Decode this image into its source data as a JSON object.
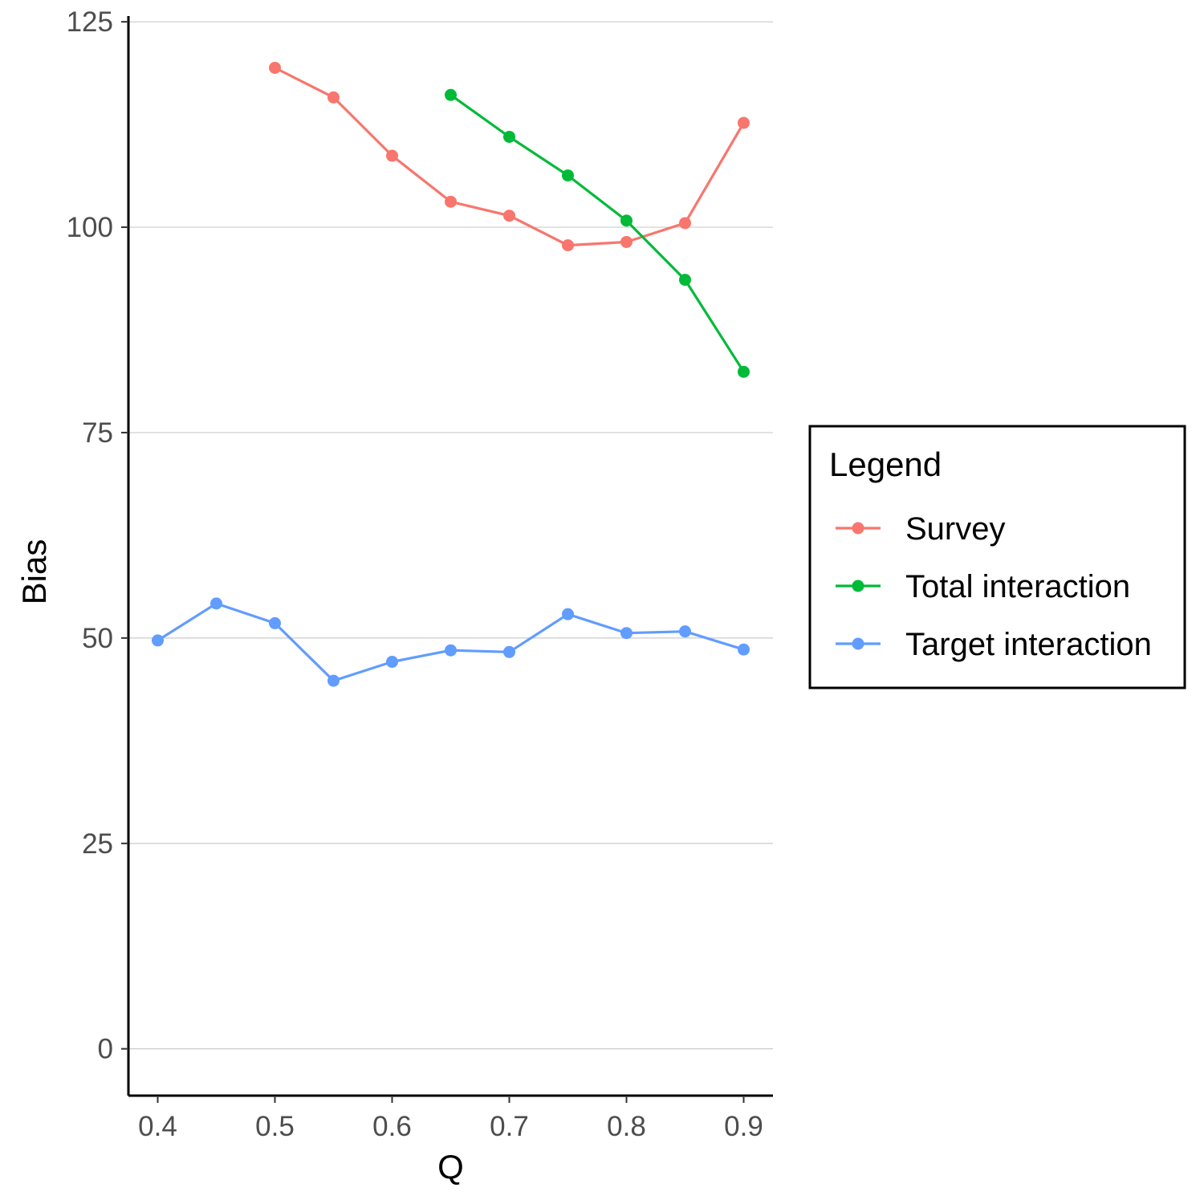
{
  "chart_data": {
    "type": "line",
    "title": "",
    "xlabel": "Q",
    "ylabel": "Bias",
    "xlim": [
      0.375,
      0.925
    ],
    "ylim": [
      -5.7,
      125.7
    ],
    "xticks": [
      0.4,
      0.5,
      0.6,
      0.7,
      0.8,
      0.9
    ],
    "xtick_labels": [
      "0.4",
      "0.5",
      "0.6",
      "0.7",
      "0.8",
      "0.9"
    ],
    "yticks": [
      0,
      25,
      50,
      75,
      100,
      125
    ],
    "ytick_labels": [
      "0",
      "25",
      "50",
      "75",
      "100",
      "125"
    ],
    "grid": "horizontal major gridlines",
    "legend": {
      "title": "Legend",
      "placement": "right",
      "entries": [
        "Survey",
        "Total interaction",
        "Target interaction"
      ]
    },
    "series": [
      {
        "name": "Survey",
        "color": "#F8766D",
        "x": [
          0.5,
          0.55,
          0.6,
          0.65,
          0.7,
          0.75,
          0.8,
          0.85,
          0.9
        ],
        "y": [
          119.4,
          115.8,
          108.7,
          103.1,
          101.4,
          97.8,
          98.2,
          100.5,
          112.7
        ]
      },
      {
        "name": "Total interaction",
        "color": "#00BA38",
        "x": [
          0.65,
          0.7,
          0.75,
          0.8,
          0.85,
          0.9
        ],
        "y": [
          116.1,
          111.0,
          106.3,
          100.8,
          93.6,
          82.4
        ]
      },
      {
        "name": "Target interaction",
        "color": "#619CFF",
        "x": [
          0.4,
          0.45,
          0.5,
          0.55,
          0.6,
          0.65,
          0.7,
          0.75,
          0.8,
          0.85,
          0.9
        ],
        "y": [
          49.7,
          54.2,
          51.8,
          44.8,
          47.1,
          48.5,
          48.3,
          52.9,
          50.6,
          50.8,
          48.6
        ]
      }
    ]
  }
}
